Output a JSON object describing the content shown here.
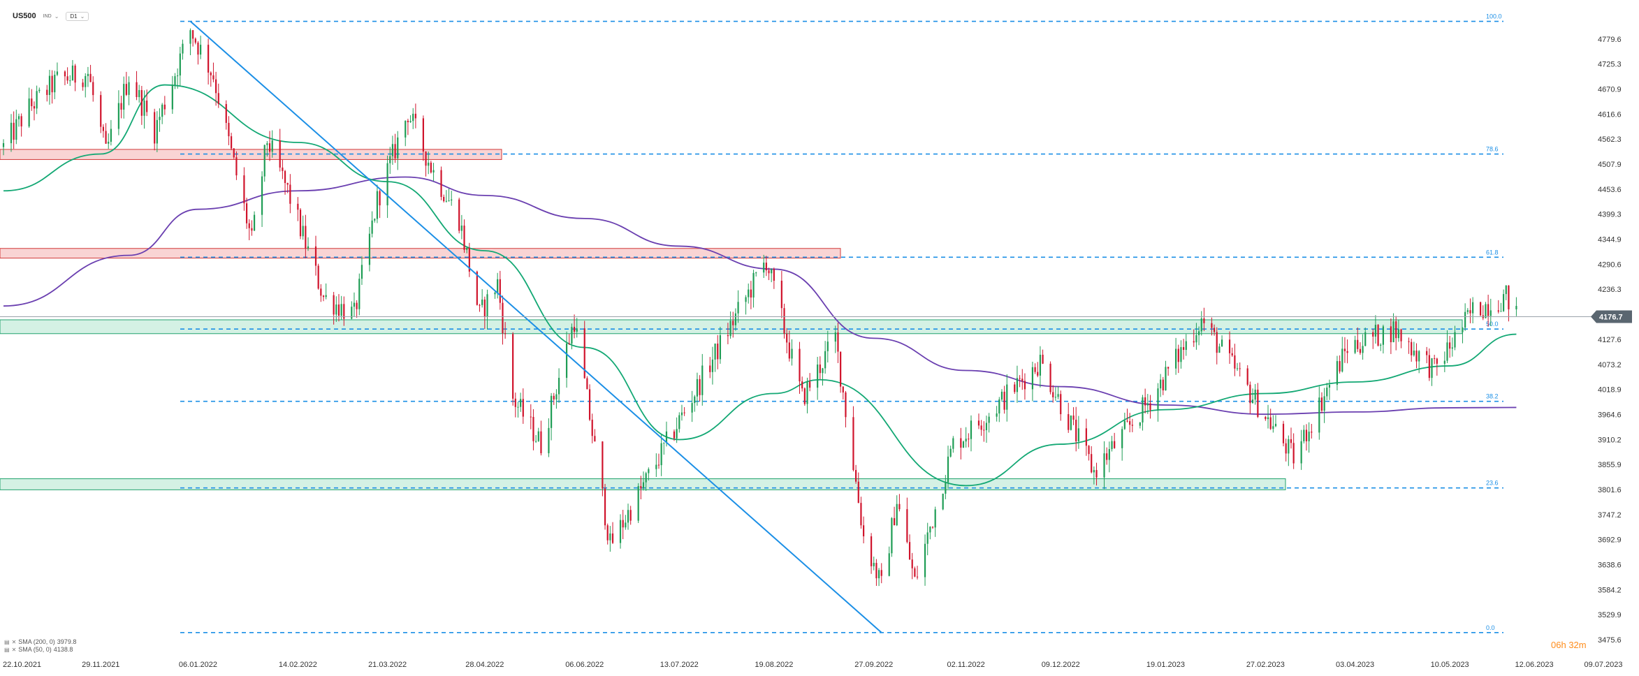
{
  "header": {
    "symbol": "US500",
    "source": "IND",
    "timeframe": "D1"
  },
  "indicators": [
    {
      "label": "SMA (200, 0)",
      "value": "3979.8",
      "color": "#6a3fb0"
    },
    {
      "label": "SMA (50, 0)",
      "value": "4138.8",
      "color": "#13a874"
    }
  ],
  "timer": {
    "hours": "06",
    "h": "h",
    "minutes": "32",
    "m": "m"
  },
  "colors": {
    "up": "#1f9d55",
    "down": "#d0142c",
    "fib": "#1b8fe6",
    "trendline": "#1b8fe6",
    "sma50": "#13a874",
    "sma200": "#6a3fb0",
    "res_zone_fill": "#f9d4d4",
    "res_zone_stroke": "#d23a3a",
    "sup_zone_fill": "#d4f1e4",
    "sup_zone_stroke": "#22a36e",
    "price_tag": "#5a6670"
  },
  "chart_data": {
    "type": "candlestick",
    "y_range": [
      3475.6,
      4834
    ],
    "y_ticks": [
      "4779.6",
      "4725.3",
      "4670.9",
      "4616.6",
      "4562.3",
      "4507.9",
      "4453.6",
      "4399.3",
      "4344.9",
      "4290.6",
      "4236.3",
      "4181.9",
      "4127.6",
      "4073.2",
      "4018.9",
      "3964.6",
      "3910.2",
      "3855.9",
      "3801.6",
      "3747.2",
      "3692.9",
      "3638.6",
      "3584.2",
      "3529.9",
      "3475.6"
    ],
    "x_ticks": [
      "22.10.2021",
      "29.11.2021",
      "06.01.2022",
      "14.02.2022",
      "21.03.2022",
      "28.04.2022",
      "06.06.2022",
      "13.07.2022",
      "19.08.2022",
      "27.09.2022",
      "02.11.2022",
      "09.12.2022",
      "19.01.2023",
      "27.02.2023",
      "03.04.2023",
      "10.05.2023",
      "12.06.2023",
      "09.07.2023"
    ],
    "current_price": "4176.7",
    "fib_levels": [
      {
        "label": "100.0",
        "value": 4818
      },
      {
        "label": "78.6",
        "value": 4530
      },
      {
        "label": "61.8",
        "value": 4306
      },
      {
        "label": "50.0",
        "value": 4150
      },
      {
        "label": "38.2",
        "value": 3993
      },
      {
        "label": "23.6",
        "value": 3805
      },
      {
        "label": "0.0",
        "value": 3491
      }
    ],
    "zones": [
      {
        "kind": "resistance",
        "low": 4518,
        "high": 4540
      },
      {
        "kind": "resistance",
        "low": 4304,
        "high": 4325
      },
      {
        "kind": "support",
        "low": 4140,
        "high": 4170
      },
      {
        "kind": "support",
        "low": 3801,
        "high": 3825
      }
    ],
    "trendline": {
      "from": {
        "date": "03.01.2022",
        "value": 4818
      },
      "to": {
        "date": "30.09.2022",
        "value": 3491
      }
    },
    "anchors": [
      {
        "date": "22.10.2021",
        "value": 4545
      },
      {
        "date": "01.11.2021",
        "value": 4630
      },
      {
        "date": "12.11.2021",
        "value": 4690
      },
      {
        "date": "24.11.2021",
        "value": 4705
      },
      {
        "date": "01.12.2021",
        "value": 4530
      },
      {
        "date": "10.12.2021",
        "value": 4700
      },
      {
        "date": "20.12.2021",
        "value": 4580
      },
      {
        "date": "03.01.2022",
        "value": 4800
      },
      {
        "date": "12.01.2022",
        "value": 4700
      },
      {
        "date": "27.01.2022",
        "value": 4340
      },
      {
        "date": "02.02.2022",
        "value": 4560
      },
      {
        "date": "10.02.2022",
        "value": 4450
      },
      {
        "date": "24.02.2022",
        "value": 4220
      },
      {
        "date": "08.03.2022",
        "value": 4180
      },
      {
        "date": "17.03.2022",
        "value": 4430
      },
      {
        "date": "29.03.2022",
        "value": 4620
      },
      {
        "date": "08.04.2022",
        "value": 4490
      },
      {
        "date": "18.04.2022",
        "value": 4390
      },
      {
        "date": "26.04.2022",
        "value": 4180
      },
      {
        "date": "03.05.2022",
        "value": 4250
      },
      {
        "date": "09.05.2022",
        "value": 4000
      },
      {
        "date": "20.05.2022",
        "value": 3900
      },
      {
        "date": "02.06.2022",
        "value": 4170
      },
      {
        "date": "16.06.2022",
        "value": 3680
      },
      {
        "date": "07.07.2022",
        "value": 3890
      },
      {
        "date": "16.08.2022",
        "value": 4300
      },
      {
        "date": "30.08.2022",
        "value": 4000
      },
      {
        "date": "12.09.2022",
        "value": 4130
      },
      {
        "date": "23.09.2022",
        "value": 3700
      },
      {
        "date": "30.09.2022",
        "value": 3590
      },
      {
        "date": "06.10.2022",
        "value": 3780
      },
      {
        "date": "13.10.2022",
        "value": 3600
      },
      {
        "date": "28.10.2022",
        "value": 3900
      },
      {
        "date": "10.11.2022",
        "value": 3960
      },
      {
        "date": "01.12.2022",
        "value": 4080
      },
      {
        "date": "22.12.2022",
        "value": 3840
      },
      {
        "date": "12.01.2023",
        "value": 3990
      },
      {
        "date": "02.02.2023",
        "value": 4170
      },
      {
        "date": "10.03.2023",
        "value": 3870
      },
      {
        "date": "31.03.2023",
        "value": 4110
      },
      {
        "date": "18.04.2023",
        "value": 4150
      },
      {
        "date": "04.05.2023",
        "value": 4060
      },
      {
        "date": "19.05.2023",
        "value": 4190
      },
      {
        "date": "01.06.2023",
        "value": 4220
      },
      {
        "date": "05.06.2023",
        "value": 4180
      }
    ],
    "sma200_anchors": [
      {
        "date": "22.10.2021",
        "value": 4200
      },
      {
        "date": "10.12.2021",
        "value": 4310
      },
      {
        "date": "06.01.2022",
        "value": 4410
      },
      {
        "date": "14.02.2022",
        "value": 4450
      },
      {
        "date": "28.03.2022",
        "value": 4480
      },
      {
        "date": "28.04.2022",
        "value": 4440
      },
      {
        "date": "06.06.2022",
        "value": 4390
      },
      {
        "date": "13.07.2022",
        "value": 4330
      },
      {
        "date": "19.08.2022",
        "value": 4280
      },
      {
        "date": "27.09.2022",
        "value": 4130
      },
      {
        "date": "02.11.2022",
        "value": 4060
      },
      {
        "date": "09.12.2022",
        "value": 4025
      },
      {
        "date": "19.01.2023",
        "value": 3985
      },
      {
        "date": "27.02.2023",
        "value": 3965
      },
      {
        "date": "03.04.2023",
        "value": 3970
      },
      {
        "date": "10.05.2023",
        "value": 3979
      },
      {
        "date": "05.06.2023",
        "value": 3979.8
      }
    ],
    "sma50_anchors": [
      {
        "date": "22.10.2021",
        "value": 4450
      },
      {
        "date": "29.11.2021",
        "value": 4530
      },
      {
        "date": "24.12.2021",
        "value": 4680
      },
      {
        "date": "14.02.2022",
        "value": 4555
      },
      {
        "date": "21.03.2022",
        "value": 4470
      },
      {
        "date": "28.04.2022",
        "value": 4320
      },
      {
        "date": "06.06.2022",
        "value": 4110
      },
      {
        "date": "13.07.2022",
        "value": 3910
      },
      {
        "date": "19.08.2022",
        "value": 4010
      },
      {
        "date": "06.09.2022",
        "value": 4040
      },
      {
        "date": "02.11.2022",
        "value": 3810
      },
      {
        "date": "09.12.2022",
        "value": 3900
      },
      {
        "date": "19.01.2023",
        "value": 3975
      },
      {
        "date": "27.02.2023",
        "value": 4010
      },
      {
        "date": "03.04.2023",
        "value": 4035
      },
      {
        "date": "10.05.2023",
        "value": 4070
      },
      {
        "date": "05.06.2023",
        "value": 4138.8
      }
    ]
  }
}
